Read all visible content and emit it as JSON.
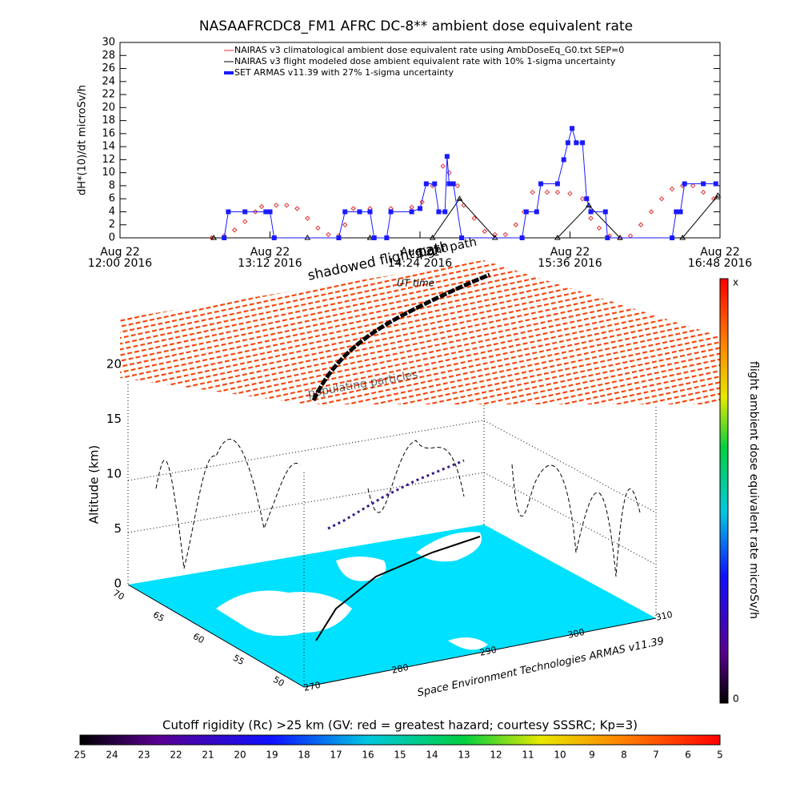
{
  "chart_data": {
    "type": "line",
    "title": "NASAAFRCDC8_FM1 AFRC DC-8** ambient dose equivalent rate",
    "y_label": "dH*(10)/dt microSv/h",
    "xlim": [
      "2016-08-22 12:00",
      "2016-08-22 16:48"
    ],
    "xticks": [
      {
        "value": "2016-08-22 12:00",
        "label": [
          "Aug 22",
          "12:00 2016"
        ]
      },
      {
        "value": "2016-08-22 13:12",
        "label": [
          "Aug 22",
          "13:12 2016"
        ]
      },
      {
        "value": "2016-08-22 14:24",
        "label": [
          "Aug 22",
          "14:24 2016"
        ]
      },
      {
        "value": "2016-08-22 15:36",
        "label": [
          "Aug 22",
          "15:36 2016"
        ]
      },
      {
        "value": "2016-08-22 16:48",
        "label": [
          "Aug 22",
          "16:48 2016"
        ]
      }
    ],
    "ylim": [
      0,
      30
    ],
    "yticks": [
      0,
      2,
      4,
      6,
      8,
      10,
      12,
      14,
      16,
      18,
      20,
      22,
      24,
      26,
      28,
      30
    ],
    "series": [
      {
        "name": "NAIRAS v3 climatological ambient dose equivalent rate using AmbDoseEq_G0.txt SEP=0",
        "color": "#e03030",
        "marker": "diamond",
        "x": [
          "2016-08-22 12:44",
          "2016-08-22 12:50",
          "2016-08-22 12:55",
          "2016-08-22 13:00",
          "2016-08-22 13:05",
          "2016-08-22 13:08",
          "2016-08-22 13:15",
          "2016-08-22 13:20",
          "2016-08-22 13:25",
          "2016-08-22 13:30",
          "2016-08-22 13:35",
          "2016-08-22 13:40",
          "2016-08-22 13:45",
          "2016-08-22 13:48",
          "2016-08-22 13:52",
          "2016-08-22 14:00",
          "2016-08-22 14:10",
          "2016-08-22 14:20",
          "2016-08-22 14:25",
          "2016-08-22 14:30",
          "2016-08-22 14:35",
          "2016-08-22 14:38",
          "2016-08-22 14:42",
          "2016-08-22 14:45",
          "2016-08-22 14:50",
          "2016-08-22 14:55",
          "2016-08-22 15:00",
          "2016-08-22 15:05",
          "2016-08-22 15:10",
          "2016-08-22 15:14",
          "2016-08-22 15:18",
          "2016-08-22 15:25",
          "2016-08-22 15:30",
          "2016-08-22 15:36",
          "2016-08-22 15:42",
          "2016-08-22 15:46",
          "2016-08-22 15:50",
          "2016-08-22 15:55",
          "2016-08-22 16:00",
          "2016-08-22 16:05",
          "2016-08-22 16:10",
          "2016-08-22 16:15",
          "2016-08-22 16:20",
          "2016-08-22 16:25",
          "2016-08-22 16:30",
          "2016-08-22 16:35",
          "2016-08-22 16:40",
          "2016-08-22 16:45"
        ],
        "values": [
          0,
          0.3,
          1.2,
          2.5,
          4,
          4.8,
          5,
          5,
          4.5,
          3,
          1.5,
          0.5,
          0.3,
          2,
          4.5,
          4.5,
          4.5,
          4.7,
          5.5,
          8,
          11,
          10,
          8,
          5,
          3,
          1,
          0.5,
          0.5,
          2,
          4,
          7,
          7,
          7,
          6.8,
          6,
          3,
          1.5,
          0.3,
          0,
          0.3,
          2,
          4,
          6,
          7.5,
          8,
          8,
          7,
          6
        ]
      },
      {
        "name": "NAIRAS v3 flight modeled dose ambient equivalent rate with 10% 1-sigma uncertainty",
        "color": "#000000",
        "marker": "triangle",
        "x": [
          "2016-08-22 12:45",
          "2016-08-22 13:30",
          "2016-08-22 14:00",
          "2016-08-22 14:30",
          "2016-08-22 14:43",
          "2016-08-22 15:00",
          "2016-08-22 15:30",
          "2016-08-22 15:45",
          "2016-08-22 16:00",
          "2016-08-22 16:30",
          "2016-08-22 16:47"
        ],
        "values": [
          0,
          0,
          0,
          0,
          6,
          0,
          0,
          5,
          0,
          0,
          6.5
        ]
      },
      {
        "name": "SET ARMAS v11.39 with 27% 1-sigma uncertainty",
        "color": "#1a1aff",
        "marker": "square",
        "x": [
          "2016-08-22 12:50",
          "2016-08-22 12:52",
          "2016-08-22 13:00",
          "2016-08-22 13:10",
          "2016-08-22 13:12",
          "2016-08-22 13:14",
          "2016-08-22 13:45",
          "2016-08-22 13:48",
          "2016-08-22 13:55",
          "2016-08-22 14:00",
          "2016-08-22 14:02",
          "2016-08-22 14:08",
          "2016-08-22 14:10",
          "2016-08-22 14:20",
          "2016-08-22 14:24",
          "2016-08-22 14:27",
          "2016-08-22 14:31",
          "2016-08-22 14:33",
          "2016-08-22 14:36",
          "2016-08-22 14:37",
          "2016-08-22 14:38",
          "2016-08-22 14:40",
          "2016-08-22 14:44",
          "2016-08-22 15:13",
          "2016-08-22 15:15",
          "2016-08-22 15:20",
          "2016-08-22 15:22",
          "2016-08-22 15:30",
          "2016-08-22 15:33",
          "2016-08-22 15:35",
          "2016-08-22 15:37",
          "2016-08-22 15:39",
          "2016-08-22 15:42",
          "2016-08-22 15:44",
          "2016-08-22 15:46",
          "2016-08-22 15:53",
          "2016-08-22 15:54",
          "2016-08-22 16:25",
          "2016-08-22 16:27",
          "2016-08-22 16:29",
          "2016-08-22 16:31",
          "2016-08-22 16:40",
          "2016-08-22 16:46"
        ],
        "values": [
          0,
          4,
          4,
          4,
          4,
          0,
          0,
          4,
          4,
          4,
          0,
          0,
          4,
          4,
          4.5,
          8.3,
          8.3,
          4,
          4,
          12.5,
          8.3,
          8.3,
          0,
          0,
          4,
          4,
          8.3,
          8.3,
          12,
          14.6,
          16.8,
          14.6,
          14.6,
          6,
          4,
          4,
          0,
          0,
          4,
          4,
          8.3,
          8.3,
          8.3
        ]
      }
    ],
    "legend": "top"
  },
  "scene": {
    "labels": {
      "shadow": "shadowed flight path",
      "flight": "flight path",
      "ut": "UT time",
      "particles": "populating particles",
      "credit": "Space Environment Technologies ARMAS v11.39"
    },
    "altitude": {
      "label": "Altitude (km)",
      "lim": [
        0,
        20
      ],
      "ticks": [
        0,
        5,
        10,
        15,
        20
      ]
    },
    "latitude_ticks": [
      70,
      65,
      60,
      55,
      50
    ],
    "longitude_ticks": [
      270,
      280,
      290,
      300,
      310
    ],
    "dose_colorbar": {
      "label": "flight ambient dose equivalent rate microSv/h",
      "top": "x",
      "bottom": "0"
    },
    "rigidity_colorbar": {
      "title": "Cutoff rigidity (Rc) >25 km (GV: red = greatest hazard; courtesy SSSRC; Kp=3)",
      "lim": [
        25,
        5
      ],
      "ticks": [
        25,
        24,
        23,
        22,
        21,
        20,
        19,
        18,
        17,
        16,
        15,
        14,
        13,
        12,
        11,
        10,
        9,
        8,
        7,
        6,
        5
      ]
    }
  }
}
